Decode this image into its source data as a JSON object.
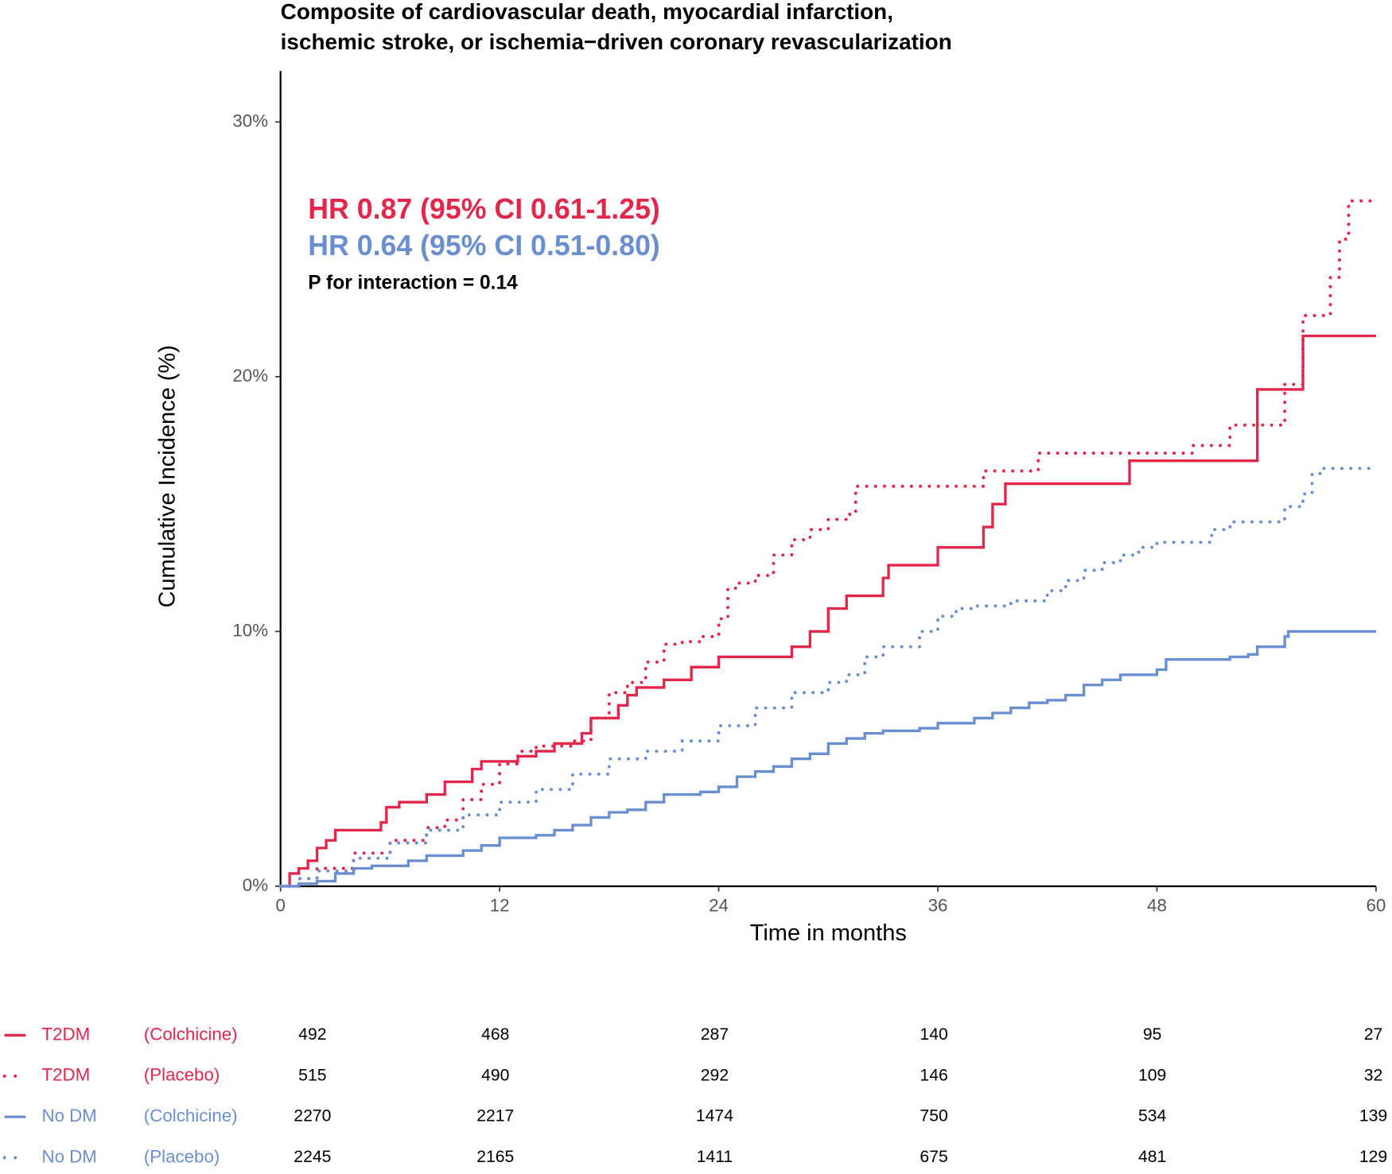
{
  "chart_data": {
    "type": "line",
    "step": "post",
    "title": [
      "Composite of cardiovascular death, myocardial infarction,",
      "ischemic stroke, or ischemia−driven coronary revascularization"
    ],
    "annotations": [
      {
        "text": "HR 0.87 (95% CI 0.61-1.25)",
        "color": "#e3264b"
      },
      {
        "text": "HR 0.64 (95% CI 0.51-0.80)",
        "color": "#6a8fd0"
      },
      {
        "text": "P for interaction = 0.14",
        "color": "#000000"
      }
    ],
    "xlabel": "Time in months",
    "ylabel": "Cumulative Incidence (%)",
    "xlim": [
      0,
      60
    ],
    "xticks": [
      0,
      12,
      24,
      36,
      48,
      60
    ],
    "ylim": [
      0,
      32
    ],
    "yticks": [
      {
        "value": 0,
        "label": "0%"
      },
      {
        "value": 10,
        "label": "10%"
      },
      {
        "value": 20,
        "label": "20%"
      },
      {
        "value": 30,
        "label": "30%"
      }
    ],
    "series": [
      {
        "name": "T2DM",
        "arm": "(Colchicine)",
        "color": "#e3264b",
        "dashed": false,
        "x": [
          0,
          0.5,
          1,
          1.5,
          2,
          2.5,
          3,
          5.5,
          5.8,
          6.5,
          8,
          9,
          10.5,
          11,
          13,
          14,
          15,
          16.5,
          17,
          18.5,
          19,
          19.5,
          21,
          22.5,
          24,
          28,
          29,
          30,
          31,
          33,
          33.3,
          36,
          38.5,
          39,
          39.7,
          46.5,
          53.5,
          56,
          60
        ],
        "values": [
          0,
          0.5,
          0.7,
          1.0,
          1.5,
          1.8,
          2.2,
          2.5,
          3.1,
          3.3,
          3.6,
          4.1,
          4.6,
          4.9,
          5.1,
          5.3,
          5.6,
          6.0,
          6.6,
          7.1,
          7.5,
          7.8,
          8.1,
          8.6,
          9.0,
          9.4,
          10.0,
          10.9,
          11.4,
          12.1,
          12.6,
          13.3,
          14.1,
          15.0,
          15.8,
          16.7,
          19.5,
          21.6,
          21.6
        ],
        "at_risk": [
          492,
          468,
          287,
          140,
          95,
          27
        ]
      },
      {
        "name": "T2DM",
        "arm": "(Placebo)",
        "color": "#e3264b",
        "dashed": true,
        "x": [
          0,
          1,
          2,
          4,
          6,
          8,
          9,
          10,
          11,
          12,
          13,
          14,
          16,
          17,
          18,
          19,
          20,
          21,
          22,
          23,
          24,
          24.5,
          25,
          26,
          27,
          28,
          29,
          30,
          31,
          31.5,
          38.5,
          41.5,
          50,
          52,
          55,
          56,
          57.5,
          58,
          58.5,
          60
        ],
        "values": [
          0,
          0.3,
          0.7,
          1.3,
          1.8,
          2.3,
          2.6,
          3.4,
          4.0,
          4.8,
          5.3,
          5.5,
          5.7,
          6.6,
          7.6,
          8.0,
          8.8,
          9.5,
          9.6,
          9.8,
          10.5,
          11.7,
          11.9,
          12.2,
          13.0,
          13.6,
          14.0,
          14.4,
          14.6,
          15.7,
          16.3,
          17.0,
          17.3,
          18.1,
          19.7,
          22.4,
          23.9,
          25.4,
          26.9,
          26.9
        ],
        "at_risk": [
          515,
          490,
          292,
          146,
          109,
          32
        ]
      },
      {
        "name": "No DM",
        "arm": "(Colchicine)",
        "color": "#6a8fd0",
        "dashed": false,
        "x": [
          0,
          1,
          2,
          3,
          4,
          5,
          7,
          8,
          10,
          11,
          12,
          14,
          15,
          16,
          17,
          18,
          19,
          20,
          21,
          23,
          24,
          25,
          26,
          27,
          28,
          29,
          30,
          31,
          32,
          33,
          35,
          36,
          38,
          39,
          40,
          41,
          42,
          43,
          44,
          45,
          46,
          48,
          48.5,
          52,
          53,
          53.5,
          55,
          55.2,
          60
        ],
        "values": [
          0,
          0.1,
          0.2,
          0.5,
          0.7,
          0.8,
          1.0,
          1.2,
          1.4,
          1.6,
          1.9,
          2.0,
          2.2,
          2.4,
          2.7,
          2.9,
          3.0,
          3.3,
          3.6,
          3.7,
          3.9,
          4.3,
          4.5,
          4.7,
          5.0,
          5.2,
          5.6,
          5.8,
          6.0,
          6.1,
          6.2,
          6.4,
          6.6,
          6.8,
          7.0,
          7.2,
          7.3,
          7.5,
          7.9,
          8.1,
          8.3,
          8.5,
          8.9,
          9.0,
          9.1,
          9.4,
          9.8,
          10.0,
          10.0
        ],
        "at_risk": [
          2270,
          2217,
          1474,
          750,
          534,
          139
        ]
      },
      {
        "name": "No DM",
        "arm": "(Placebo)",
        "color": "#6a8fd0",
        "dashed": true,
        "x": [
          0,
          1,
          2,
          4,
          6,
          8,
          10,
          12,
          14,
          16,
          18,
          20,
          22,
          24,
          26,
          28,
          30,
          31,
          32,
          33,
          35,
          36,
          37,
          38,
          40,
          42,
          43,
          44,
          45,
          46,
          47,
          48,
          50,
          51,
          52,
          54,
          55,
          56,
          56.5,
          57,
          60
        ],
        "values": [
          0,
          0.3,
          0.6,
          1.1,
          1.7,
          2.2,
          2.8,
          3.3,
          3.8,
          4.4,
          5.0,
          5.3,
          5.7,
          6.3,
          7.0,
          7.6,
          8.0,
          8.3,
          9.0,
          9.4,
          10.0,
          10.6,
          10.9,
          11.0,
          11.2,
          11.6,
          12.0,
          12.4,
          12.7,
          13.0,
          13.3,
          13.5,
          13.5,
          14.0,
          14.3,
          14.3,
          14.9,
          15.4,
          16.2,
          16.4,
          16.4
        ],
        "at_risk": [
          2245,
          2165,
          1411,
          675,
          481,
          129
        ]
      }
    ]
  }
}
